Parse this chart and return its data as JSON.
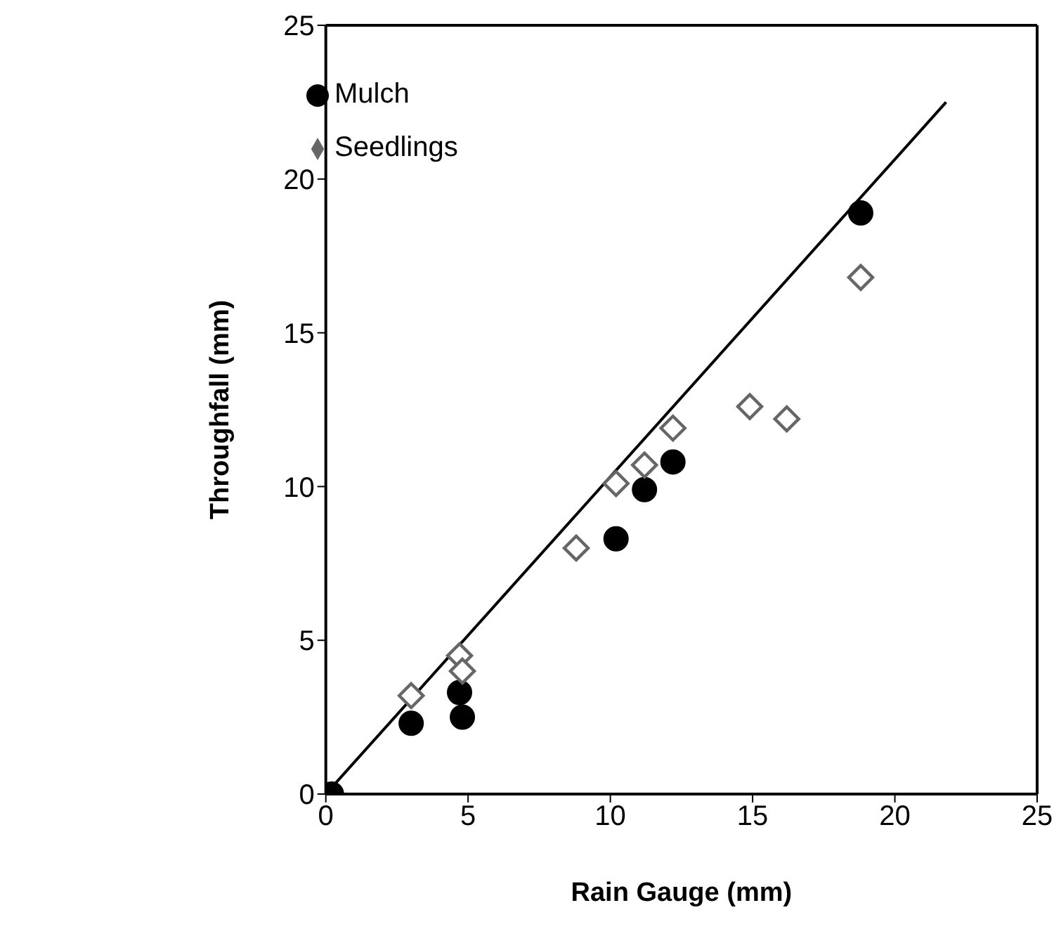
{
  "chart_data": {
    "type": "scatter",
    "xlabel": "Rain Gauge (mm)",
    "ylabel": "Throughfall (mm)",
    "xlim": [
      0,
      25
    ],
    "xticks": [
      0,
      5,
      10,
      15,
      20,
      25
    ],
    "ylim": [
      0,
      25
    ],
    "yticks": [
      0,
      5,
      10,
      15,
      20,
      25
    ],
    "legend": "top left",
    "series": [
      {
        "name": "Mulch",
        "color": "#000000",
        "marker": "circle",
        "x": [
          0.2,
          3.0,
          4.7,
          4.8,
          10.2,
          11.2,
          12.2,
          18.8
        ],
        "values": [
          0,
          2.3,
          3.3,
          2.5,
          8.3,
          9.9,
          10.8,
          18.9
        ]
      },
      {
        "name": "Seedlings",
        "color": "#666666",
        "marker": "diamond",
        "x": [
          3.0,
          4.7,
          4.8,
          8.8,
          10.2,
          11.2,
          12.2,
          14.9,
          16.2,
          18.8
        ],
        "values": [
          3.2,
          4.5,
          4.0,
          8.0,
          10.1,
          10.7,
          11.9,
          12.6,
          12.2,
          16.8
        ]
      },
      {
        "type": "line",
        "color": "#000000",
        "marker": "none",
        "line_style": "solid",
        "x": [
          0,
          21.8
        ],
        "values": [
          0,
          22.5
        ]
      }
    ]
  }
}
